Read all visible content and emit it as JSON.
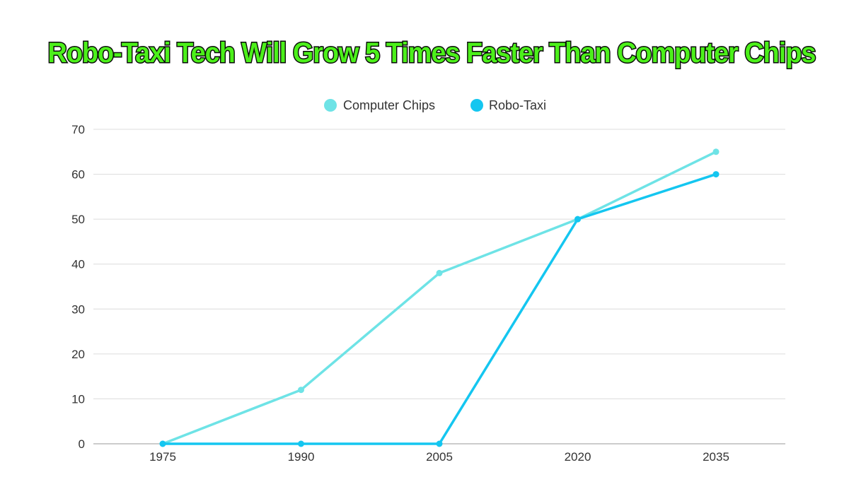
{
  "chart_data": {
    "type": "line",
    "title": "Robo-Taxi Tech Will Grow 5 Times Faster Than Computer Chips",
    "xlabel": "",
    "ylabel": "",
    "x": [
      "1975",
      "1990",
      "2005",
      "2020",
      "2035"
    ],
    "ylim": [
      0,
      70
    ],
    "yticks": [
      0,
      10,
      20,
      30,
      40,
      50,
      60,
      70
    ],
    "grid": true,
    "legend_position": "top-center",
    "series": [
      {
        "name": "Computer Chips",
        "color": "#6ee3e6",
        "values": [
          0,
          12,
          38,
          50,
          65
        ]
      },
      {
        "name": "Robo-Taxi",
        "color": "#14c6f0",
        "values": [
          0,
          0,
          0,
          50,
          60
        ]
      }
    ]
  }
}
